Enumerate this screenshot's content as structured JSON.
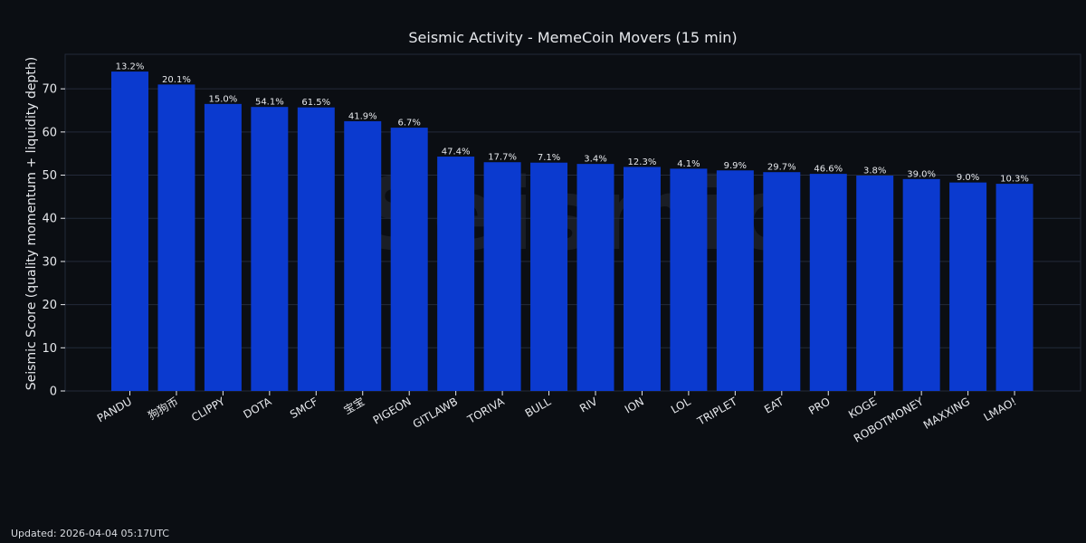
{
  "footer": {
    "updated": "Updated: 2026-04-04 05:17UTC"
  },
  "colors": {
    "background": "#0b0e13",
    "bar": "#0b3acf",
    "grid": "#232a3a",
    "text": "#e6e8ec"
  },
  "chart_data": {
    "type": "bar",
    "title": "Seismic Activity - MemeCoin Movers (15 min)",
    "xlabel": "",
    "ylabel": "Seismic Score (quality momentum + liquidity depth)",
    "watermark": "Seismic",
    "ylim": [
      0,
      78
    ],
    "yticks": [
      0,
      10,
      20,
      30,
      40,
      50,
      60,
      70
    ],
    "grid": true,
    "categories": [
      "PANDU",
      "狗狗币",
      "CLIPPY",
      "DOTA",
      "SMCF",
      "宝宝",
      "PIGEON",
      "GITLAWB",
      "TORIVA",
      "BULL",
      "RIV",
      "ION",
      "LOL",
      "TRIPLET",
      "EAT",
      "PRO",
      "KOGE",
      "ROBOTMONEY",
      "MAXXING",
      "LMAO!"
    ],
    "values": [
      74.0,
      71.0,
      66.5,
      65.8,
      65.7,
      62.5,
      61.0,
      54.3,
      53.0,
      52.9,
      52.6,
      51.9,
      51.5,
      51.1,
      50.7,
      50.3,
      49.9,
      49.1,
      48.3,
      48.0
    ],
    "labels": [
      "13.2%",
      "20.1%",
      "15.0%",
      "54.1%",
      "61.5%",
      "41.9%",
      "6.7%",
      "47.4%",
      "17.7%",
      "7.1%",
      "3.4%",
      "12.3%",
      "4.1%",
      "9.9%",
      "29.7%",
      "46.6%",
      "3.8%",
      "39.0%",
      "9.0%",
      "10.3%"
    ]
  }
}
